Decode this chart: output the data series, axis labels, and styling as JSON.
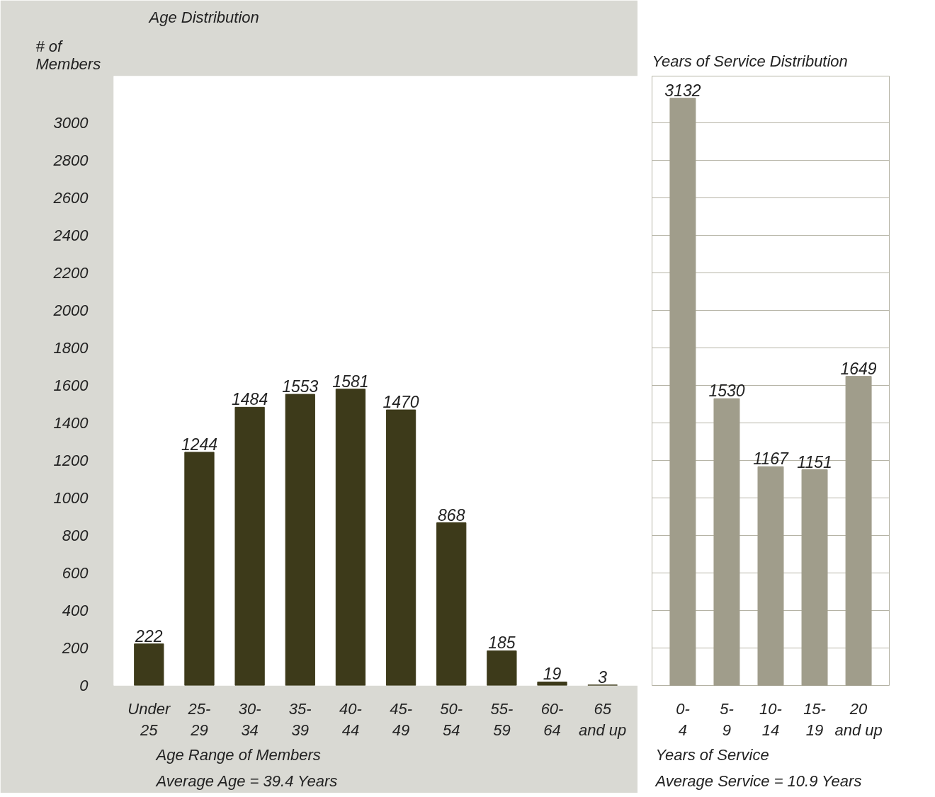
{
  "chart_data": [
    {
      "type": "bar",
      "title": "Age Distribution",
      "ylabel": "# of\nMembers",
      "xlabel": "Age Range of Members",
      "annotations": [
        "Average Age = 39.4 Years"
      ],
      "categories": [
        "Under\n25",
        "25-\n29",
        "30-\n34",
        "35-\n39",
        "40-\n44",
        "45-\n49",
        "50-\n54",
        "55-\n59",
        "60-\n64",
        "65\nand up"
      ],
      "values": [
        222,
        1244,
        1484,
        1553,
        1581,
        1470,
        868,
        185,
        19,
        3
      ],
      "color": "#3d3a1a",
      "ylim": [
        0,
        3250
      ],
      "yticks": [
        0,
        200,
        400,
        600,
        800,
        1000,
        1200,
        1400,
        1600,
        1800,
        2000,
        2200,
        2400,
        2600,
        2800,
        3000
      ],
      "grid": false,
      "data_labels": true
    },
    {
      "type": "bar",
      "title": "Years of Service Distribution",
      "xlabel": "Years of Service",
      "annotations": [
        "Average Service = 10.9 Years"
      ],
      "categories": [
        "0-\n4",
        "5-\n9",
        "10-\n14",
        "15-\n19",
        "20\nand up"
      ],
      "values": [
        3132,
        1530,
        1167,
        1151,
        1649
      ],
      "color": "#a09d8b",
      "ylim": [
        0,
        3250
      ],
      "yticks": [
        0,
        200,
        400,
        600,
        800,
        1000,
        1200,
        1400,
        1600,
        1800,
        2000,
        2200,
        2400,
        2600,
        2800,
        3000
      ],
      "grid": "y",
      "tick_labels": "x",
      "data_labels": true
    }
  ]
}
